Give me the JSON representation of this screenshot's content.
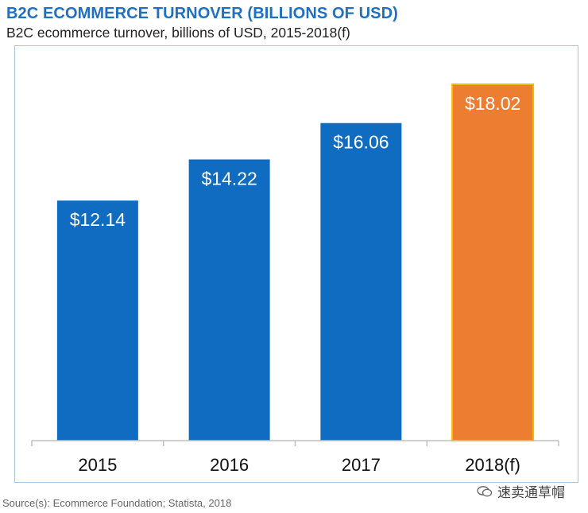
{
  "header": {
    "title": "B2C ECOMMERCE TURNOVER (BILLIONS OF USD)",
    "subtitle": "B2C ecommerce turnover, billions of USD, 2015-2018(f)"
  },
  "footer": {
    "source": "Source(s): Ecommerce Foundation; Statista, 2018",
    "watermark": "速卖通草帽",
    "watermark_icon": "wechat-icon"
  },
  "chart_data": {
    "type": "bar",
    "title": "B2C ECOMMERCE TURNOVER (BILLIONS OF USD)",
    "subtitle": "B2C ecommerce turnover, billions of USD, 2015-2018(f)",
    "categories": [
      "2015",
      "2016",
      "2017",
      "2018(f)"
    ],
    "values": [
      12.14,
      14.22,
      16.06,
      18.02
    ],
    "data_labels": [
      "$12.14",
      "$14.22",
      "$16.06",
      "$18.02"
    ],
    "xlabel": "",
    "ylabel": "",
    "ylim": [
      0,
      18.02
    ],
    "grid": false,
    "legend": "none",
    "colors": [
      "#0f6cc0",
      "#0f6cc0",
      "#0f6cc0",
      "#ec7d31"
    ],
    "forecast_border_color": "#f5b700"
  }
}
